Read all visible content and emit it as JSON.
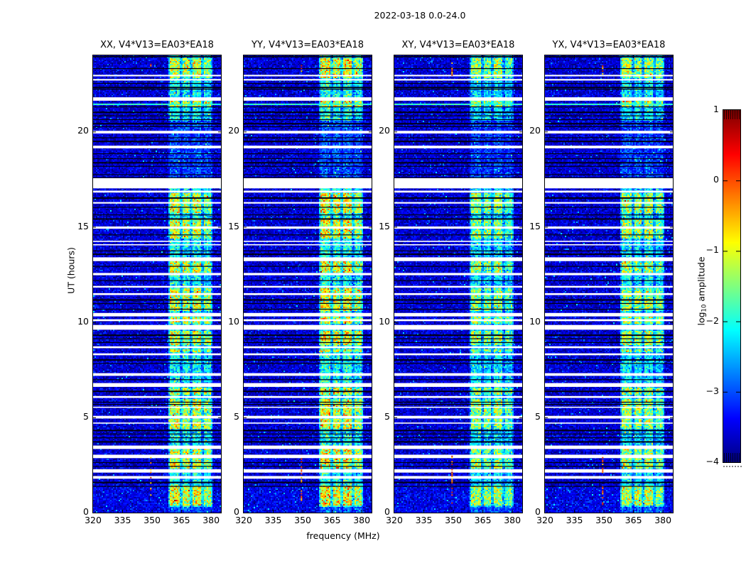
{
  "figure": {
    "title": "2022-03-18 0.0-24.0",
    "xlabel": "frequency (MHz)",
    "ylabel": "UT (hours)",
    "colorbar": {
      "label_pre": "log",
      "label_sub": "10",
      "label_post": " amplitude",
      "tick_labels": [
        "1",
        "0",
        "−1",
        "−2",
        "−3",
        "−4"
      ],
      "tick_values": [
        1,
        0,
        -1,
        -2,
        -3,
        -4
      ]
    }
  },
  "chart_data": {
    "type": "heatmap",
    "title": "2022-03-18 0.0-24.0",
    "xlabel": "frequency (MHz)",
    "ylabel": "UT (hours)",
    "x_range_mhz": [
      320,
      385
    ],
    "x_ticks": [
      320,
      335,
      350,
      365,
      380
    ],
    "y_range_hours": [
      0,
      24
    ],
    "y_ticks": [
      0,
      5,
      10,
      15,
      20
    ],
    "color_scale": {
      "label": "log10 amplitude",
      "colormap": "jet",
      "range": [
        -4,
        1
      ],
      "ticks": [
        1,
        0,
        -1,
        -2,
        -3,
        -4
      ]
    },
    "panels": [
      {
        "label": "XX, V4*V13=EA03*EA18",
        "pol": "XX",
        "band_gain": 1.0
      },
      {
        "label": "YY, V4*V13=EA03*EA18",
        "pol": "YY",
        "band_gain": 1.08
      },
      {
        "label": "XY, V4*V13=EA03*EA18",
        "pol": "XY",
        "band_gain": 0.88
      },
      {
        "label": "YX, V4*V13=EA03*EA18",
        "pol": "YX",
        "band_gain": 0.93
      }
    ],
    "background_log_amp": [
      -4.2,
      -3.0
    ],
    "rfi_band": {
      "range_mhz": [
        358.3,
        380.8
      ],
      "inter_band_strength": 0.5,
      "sub_bands_mhz": [
        [
          359.2,
          364.3
        ],
        [
          365.6,
          369.3
        ],
        [
          370.6,
          374.8
        ],
        [
          376.0,
          379.8
        ]
      ],
      "sub_band_strengths": [
        1.0,
        0.95,
        1.0,
        0.85
      ],
      "typical_log_amp": -2.0,
      "peak_log_amp": -1.0
    },
    "white_gap_hours": [
      [
        22.98,
        22.9
      ],
      [
        22.76,
        22.68
      ],
      [
        21.8,
        21.62
      ],
      [
        20.04,
        19.9
      ],
      [
        19.26,
        19.12
      ],
      [
        17.56,
        17.02
      ],
      [
        16.9,
        16.8
      ],
      [
        16.3,
        16.22
      ],
      [
        15.02,
        14.9
      ],
      [
        14.27,
        14.21
      ],
      [
        14.09,
        14.03
      ],
      [
        13.4,
        13.2
      ],
      [
        12.58,
        12.46
      ],
      [
        11.9,
        11.81
      ],
      [
        11.52,
        11.42
      ],
      [
        10.48,
        10.3
      ],
      [
        10.15,
        10.05
      ],
      [
        9.85,
        9.6
      ],
      [
        8.73,
        8.63
      ],
      [
        8.36,
        8.26
      ],
      [
        7.32,
        7.18
      ],
      [
        6.8,
        6.6
      ],
      [
        6.12,
        6.02
      ],
      [
        5.56,
        5.5
      ],
      [
        5.08,
        4.94
      ],
      [
        4.73,
        4.67
      ],
      [
        3.52,
        3.34
      ],
      [
        3.04,
        2.86
      ],
      [
        2.28,
        2.1
      ],
      [
        1.92,
        1.78
      ]
    ],
    "black_line_hours": [
      23.97,
      23.33,
      22.55,
      22.35,
      22.25,
      21.32,
      21.05,
      20.85,
      20.65,
      20.45,
      20.28,
      19.7,
      19.52,
      18.86,
      18.6,
      18.4,
      18.2,
      17.76,
      16.55,
      16.05,
      15.65,
      15.45,
      14.6,
      13.76,
      13.6,
      12.95,
      12.2,
      11.2,
      11.0,
      10.7,
      9.35,
      9.15,
      8.95,
      8.05,
      7.85,
      7.0,
      6.4,
      5.82,
      5.7,
      4.35,
      4.15,
      3.95,
      3.75,
      2.65,
      2.45,
      1.62,
      1.4
    ],
    "bright_band_hours": [
      [
        23.85,
        22.8
      ],
      [
        21.6,
        21.3
      ],
      [
        16.8,
        15.7
      ],
      [
        15.4,
        14.35
      ],
      [
        13.18,
        12.6
      ],
      [
        11.8,
        10.55
      ],
      [
        10.28,
        9.88
      ],
      [
        9.55,
        8.8
      ],
      [
        8.6,
        8.4
      ],
      [
        6.58,
        6.15
      ],
      [
        5.95,
        5.1
      ],
      [
        4.92,
        4.4
      ],
      [
        3.32,
        2.3
      ],
      [
        1.45,
        0.35
      ]
    ],
    "faint_band_hours": [
      [
        20.6,
        17.6
      ],
      [
        0.3,
        0.0
      ]
    ],
    "cyan_row_hours": [
      21.47
    ],
    "dot_column": {
      "freq_mhz": 349,
      "hour_ranges": [
        [
          23.7,
          23.0
        ],
        [
          3.0,
          0.4
        ]
      ]
    }
  }
}
